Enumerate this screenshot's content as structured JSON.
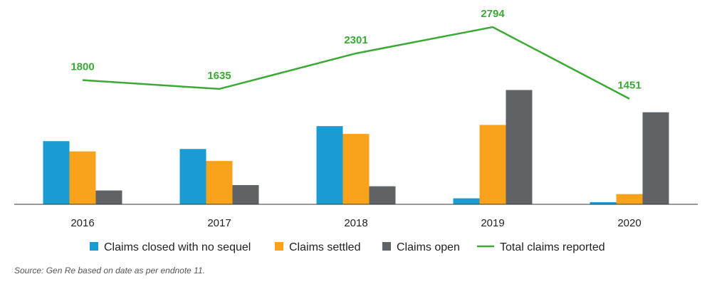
{
  "chart_data": {
    "type": "bar",
    "categories": [
      "2016",
      "2017",
      "2018",
      "2019",
      "2020"
    ],
    "series": [
      {
        "name": "Claims closed with no sequel",
        "type": "bar",
        "color": "#1a9bd1",
        "values": [
          1050,
          920,
          1300,
          100,
          35
        ]
      },
      {
        "name": "Claims settled",
        "type": "bar",
        "color": "#f9a21b",
        "values": [
          880,
          720,
          1170,
          1320,
          170
        ]
      },
      {
        "name": "Claims open",
        "type": "bar",
        "color": "#5f6366",
        "values": [
          230,
          320,
          300,
          1900,
          1530
        ]
      },
      {
        "name": "Total  claims reported",
        "type": "line",
        "color": "#3aaa35",
        "values": [
          1800,
          1635,
          2301,
          2794,
          1451
        ]
      }
    ],
    "data_labels": [
      "1800",
      "1635",
      "2301",
      "2794",
      "1451"
    ],
    "ylim": [
      0,
      3000
    ],
    "grid": false,
    "legend_position": "bottom"
  },
  "source_note": "Source: Gen Re based on date as per endnote 11."
}
